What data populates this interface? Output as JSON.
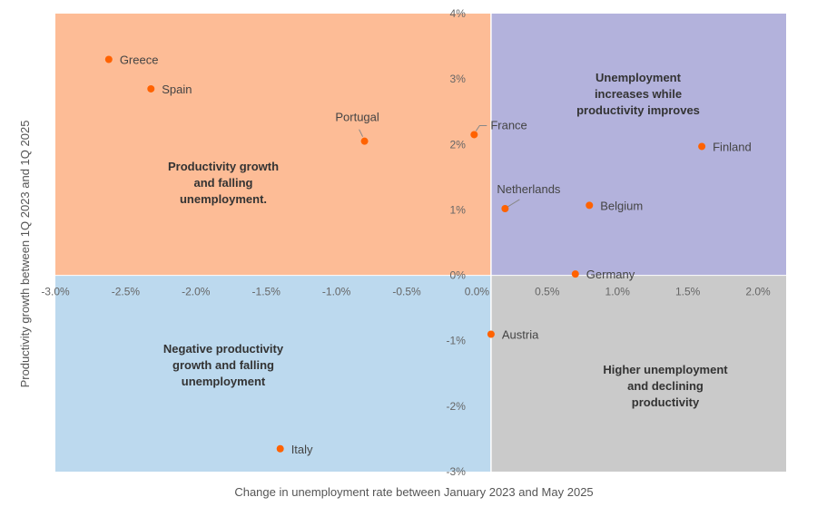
{
  "chart_data": {
    "type": "scatter",
    "xlabel": "Change in unemployment rate between January 2023 and May 2025",
    "ylabel": "Productivity growth between 1Q 2023 and 1Q 2025",
    "xlim": [
      -3.0,
      2.2
    ],
    "ylim": [
      -3,
      4
    ],
    "x_split": 0.1,
    "y_split": 0,
    "x_ticks": [
      {
        "value": -3.0,
        "label": "-3.0%"
      },
      {
        "value": -2.5,
        "label": "-2.5%"
      },
      {
        "value": -2.0,
        "label": "-2.0%"
      },
      {
        "value": -1.5,
        "label": "-1.5%"
      },
      {
        "value": -1.0,
        "label": "-1.0%"
      },
      {
        "value": -0.5,
        "label": "-0.5%"
      },
      {
        "value": 0.0,
        "label": "0.0%"
      },
      {
        "value": 0.5,
        "label": "0.5%"
      },
      {
        "value": 1.0,
        "label": "1.0%"
      },
      {
        "value": 1.5,
        "label": "1.5%"
      },
      {
        "value": 2.0,
        "label": "2.0%"
      }
    ],
    "y_ticks": [
      {
        "value": 4,
        "label": "4%"
      },
      {
        "value": 3,
        "label": "3%"
      },
      {
        "value": 2,
        "label": "2%"
      },
      {
        "value": 1,
        "label": "1%"
      },
      {
        "value": 0,
        "label": "0%"
      },
      {
        "value": -1,
        "label": "-1%"
      },
      {
        "value": -2,
        "label": "-2%"
      },
      {
        "value": -3,
        "label": "-3%"
      }
    ],
    "quadrants": [
      {
        "name": "top-left",
        "color": "#fdbc96",
        "label": [
          "Productivity growth",
          "and falling",
          "unemployment."
        ]
      },
      {
        "name": "top-right",
        "color": "#b3b2dc",
        "label": [
          "Unemployment",
          "increases while",
          "productivity improves"
        ]
      },
      {
        "name": "bottom-left",
        "color": "#bcd9ee",
        "label": [
          "Negative productivity",
          "growth and falling",
          "unemployment"
        ]
      },
      {
        "name": "bottom-right",
        "color": "#cacaca",
        "label": [
          "Higher unemployment",
          "and declining",
          "productivity"
        ]
      }
    ],
    "point_color": "#ff6200",
    "points": [
      {
        "name": "Greece",
        "x": -2.62,
        "y": 3.3,
        "label_side": "right"
      },
      {
        "name": "Spain",
        "x": -2.32,
        "y": 2.85,
        "label_side": "right"
      },
      {
        "name": "Portugal",
        "x": -0.8,
        "y": 2.05,
        "label_side": "above"
      },
      {
        "name": "France",
        "x": -0.02,
        "y": 2.15,
        "label_side": "upper-right"
      },
      {
        "name": "Netherlands",
        "x": 0.2,
        "y": 1.02,
        "label_side": "above-right"
      },
      {
        "name": "Finland",
        "x": 1.6,
        "y": 1.97,
        "label_side": "right"
      },
      {
        "name": "Belgium",
        "x": 0.8,
        "y": 1.07,
        "label_side": "right"
      },
      {
        "name": "Germany",
        "x": 0.7,
        "y": 0.02,
        "label_side": "right"
      },
      {
        "name": "Austria",
        "x": 0.1,
        "y": -0.9,
        "label_side": "right"
      },
      {
        "name": "Italy",
        "x": -1.4,
        "y": -2.65,
        "label_side": "right"
      }
    ]
  }
}
